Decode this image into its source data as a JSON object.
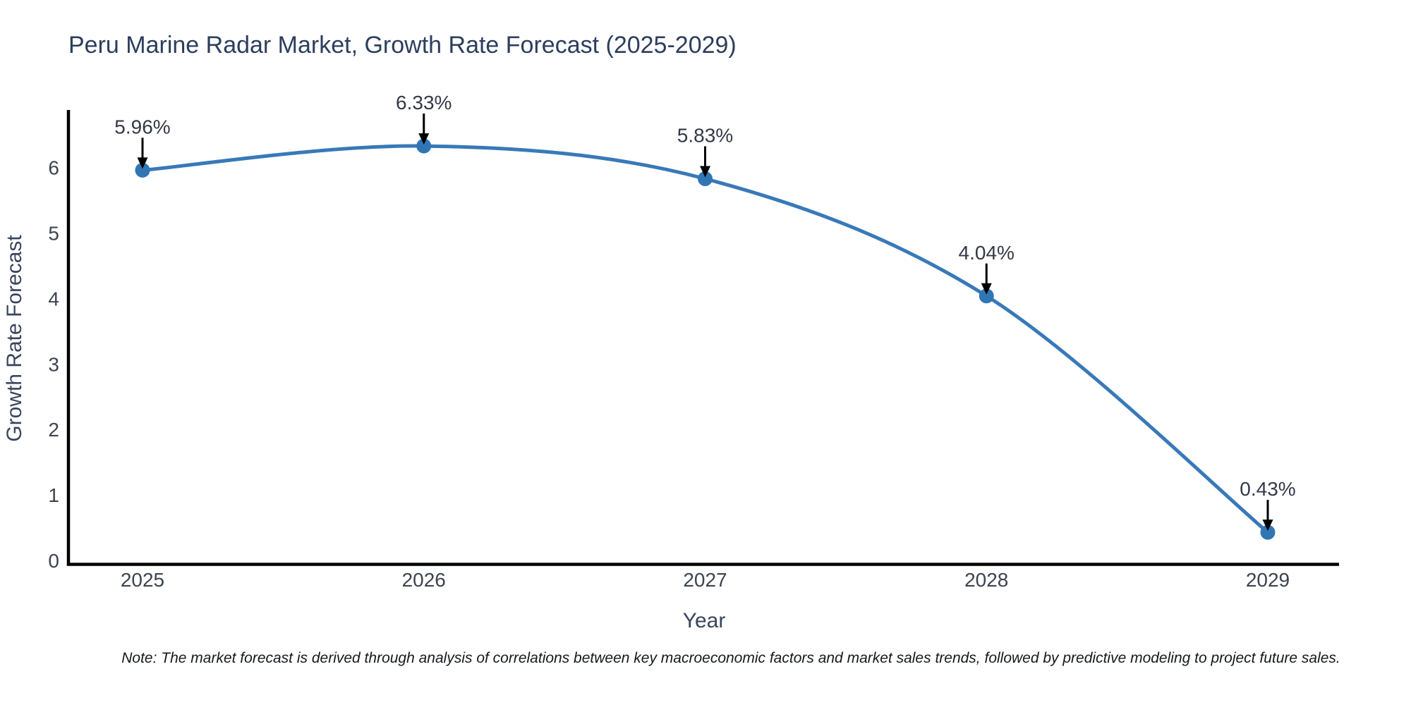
{
  "title": "Peru Marine Radar Market, Growth Rate Forecast (2025-2029)",
  "note": "Note: The market forecast is derived through analysis of correlations between key macroeconomic factors and market sales trends, followed by predictive modeling to project future sales.",
  "chart_data": {
    "type": "line",
    "title": "Peru Marine Radar Market, Growth Rate Forecast (2025-2029)",
    "xlabel": "Year",
    "ylabel": "Growth Rate Forecast",
    "categories": [
      2025,
      2026,
      2027,
      2028,
      2029
    ],
    "values": [
      5.96,
      6.33,
      5.83,
      4.04,
      0.43
    ],
    "point_labels": [
      "5.96%",
      "6.33%",
      "5.83%",
      "4.04%",
      "0.43%"
    ],
    "yticks": [
      0,
      1,
      2,
      3,
      4,
      5,
      6
    ],
    "ylim": [
      0,
      6.9
    ],
    "grid": false,
    "legend_position": "none",
    "line_shape": "spline",
    "line_color": "#3879b8",
    "marker_color": "#3176b4",
    "axis_color": "#000000",
    "arrow_color": "#000000"
  }
}
